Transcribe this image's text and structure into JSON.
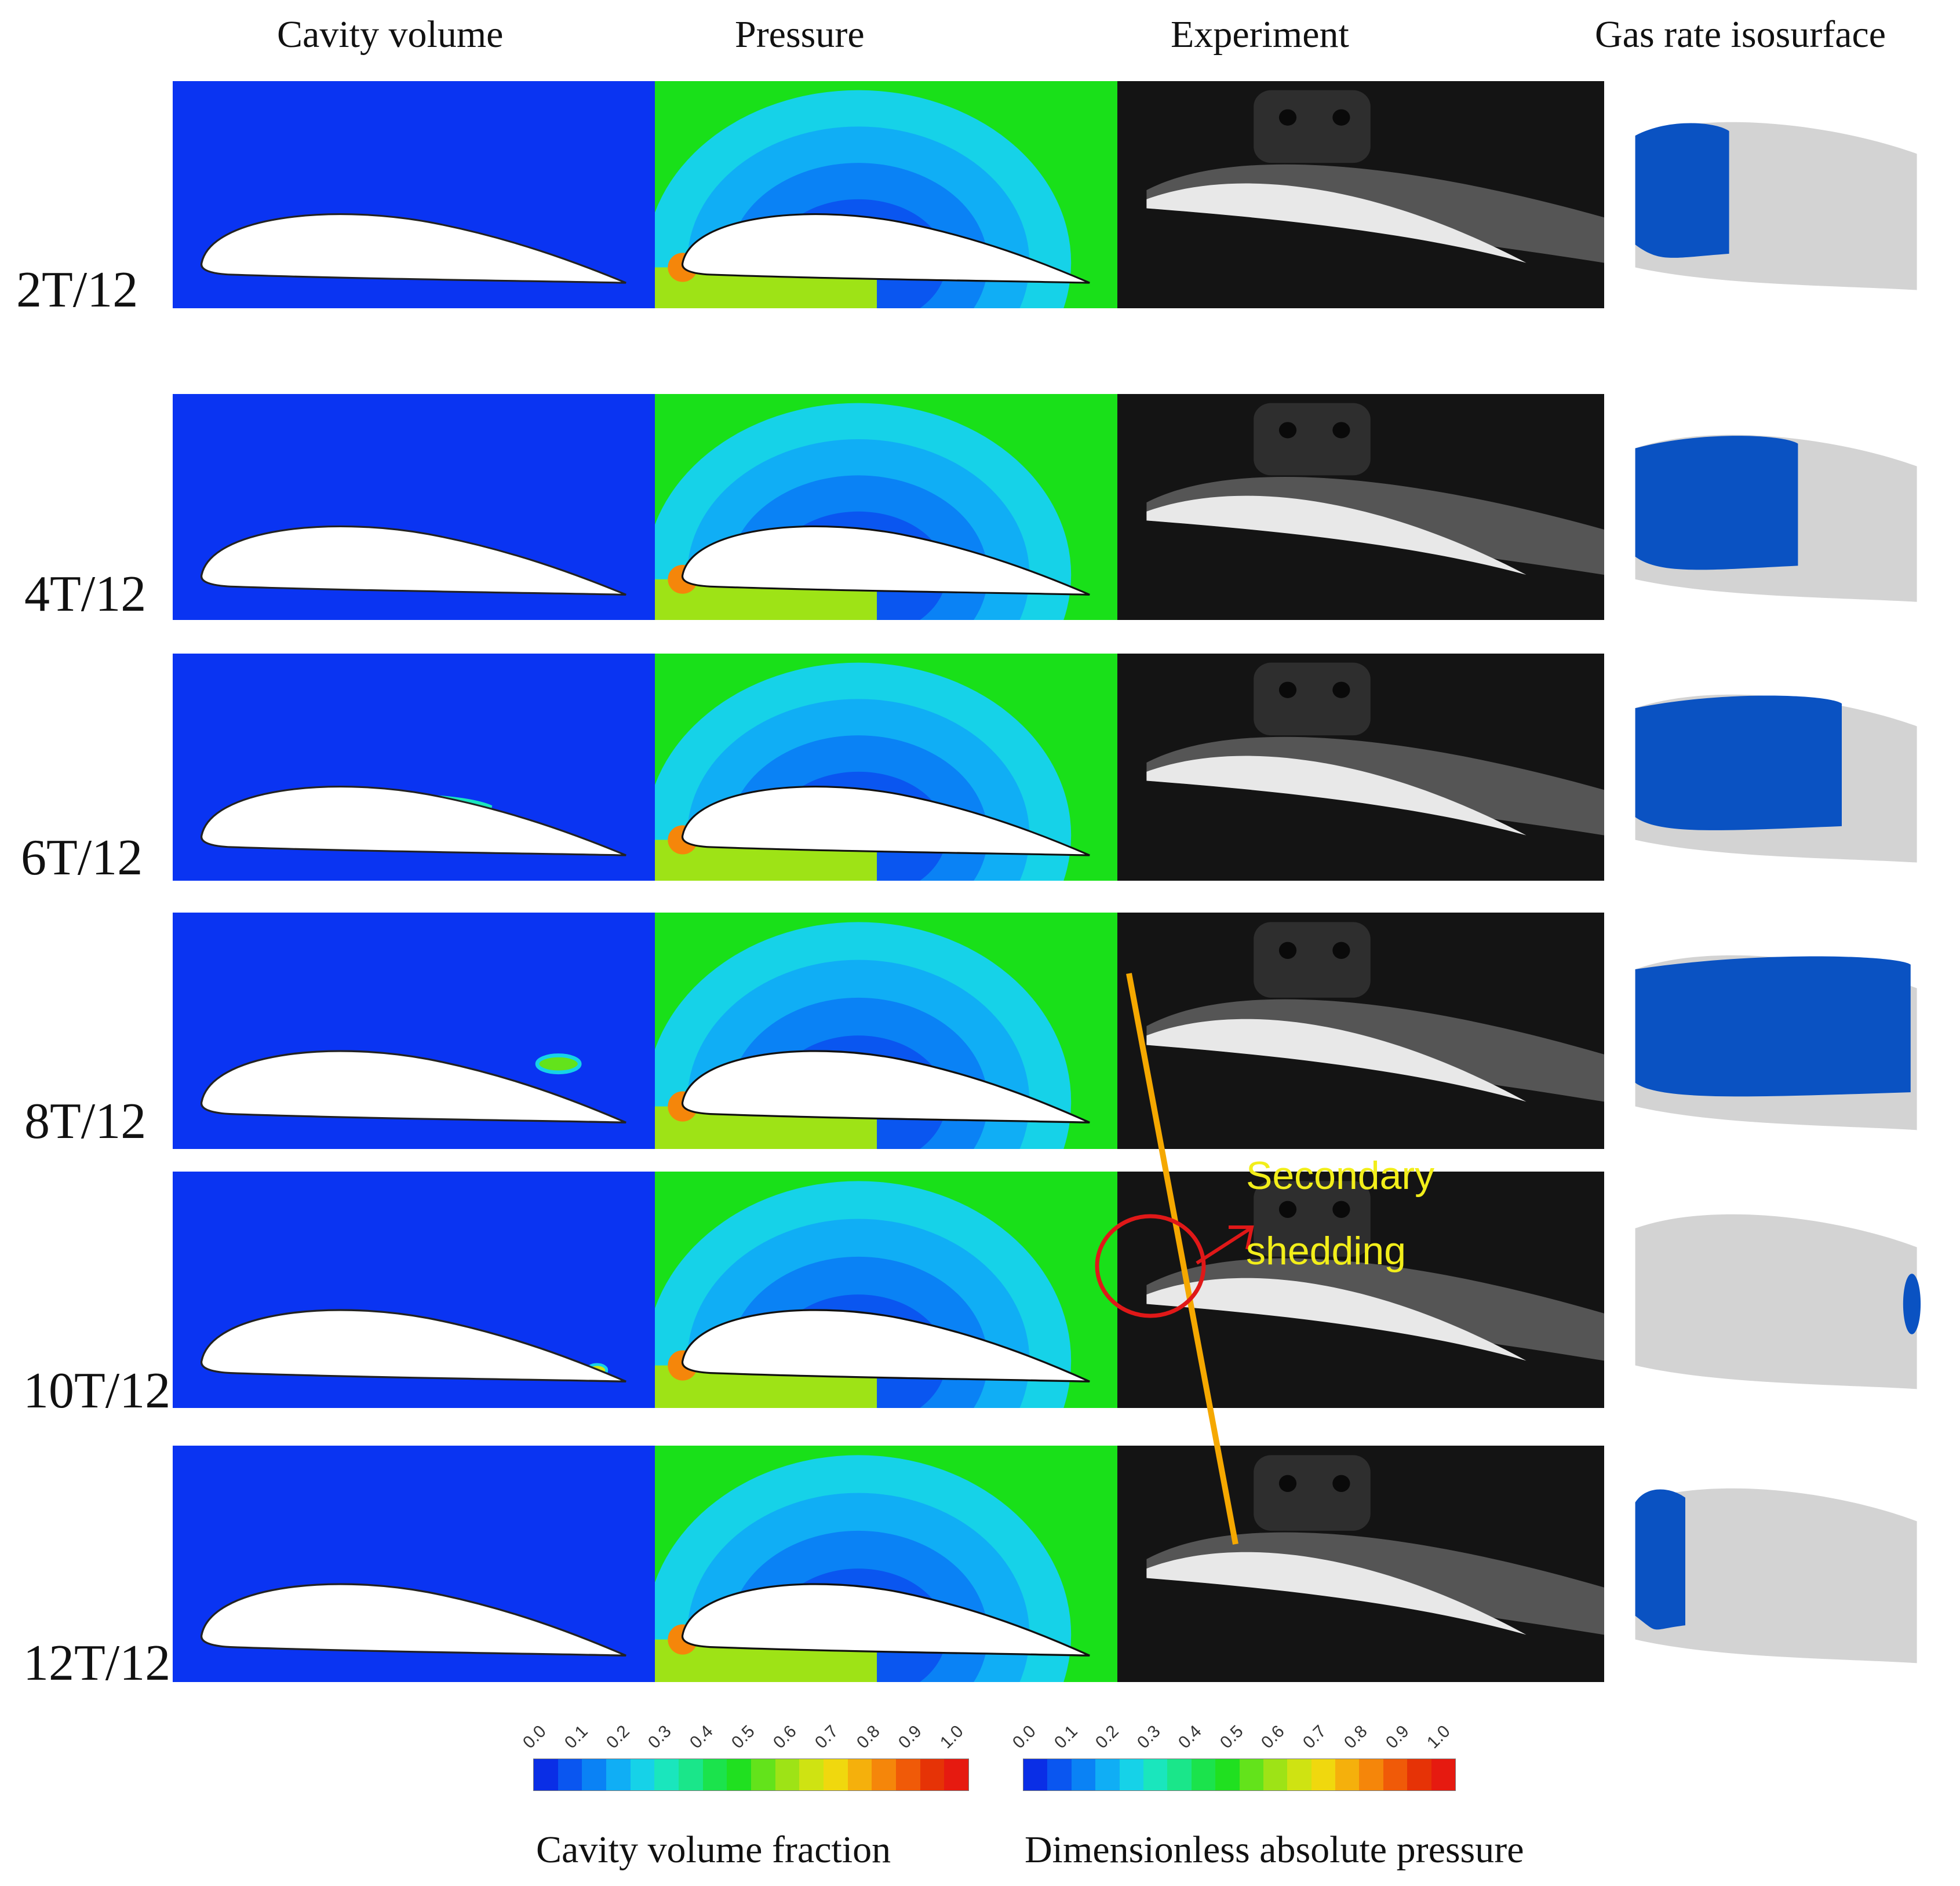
{
  "columns": {
    "cavity": "Cavity volume",
    "pressure": "Pressure",
    "experiment": "Experiment",
    "isosurface": "Gas rate isosurface"
  },
  "rows": [
    "2T/12",
    "4T/12",
    "6T/12",
    "8T/12",
    "10T/12",
    "12T/12"
  ],
  "annotation": {
    "line1": "Secondary",
    "line2": "shedding",
    "colors": {
      "text": "#f2ee1a",
      "circle": "#e01818",
      "line": "#f5a800"
    }
  },
  "legend": {
    "ticks": [
      "0.0",
      "0.1",
      "0.2",
      "0.3",
      "0.4",
      "0.5",
      "0.6",
      "0.7",
      "0.8",
      "0.9",
      "1.0"
    ],
    "cavity_title": "Cavity volume fraction",
    "pressure_title": "Dimensionless absolute pressure",
    "palette": [
      "#0a2ee6",
      "#0a56f0",
      "#0a82f5",
      "#10aef5",
      "#16d2e8",
      "#1ae6bd",
      "#1ae68a",
      "#1be34c",
      "#20e020",
      "#63e31b",
      "#9ee316",
      "#cfe312",
      "#f0d80e",
      "#f5b00c",
      "#f5860a",
      "#f05a08",
      "#e63306",
      "#e61a10"
    ]
  },
  "colors": {
    "cavity_background": "#0a34f2",
    "pressure_background": "#19e019",
    "experiment_background": "#141414",
    "isosurface_blade": "#d3d3d3",
    "isosurface_cavity": "#0a52c2"
  }
}
